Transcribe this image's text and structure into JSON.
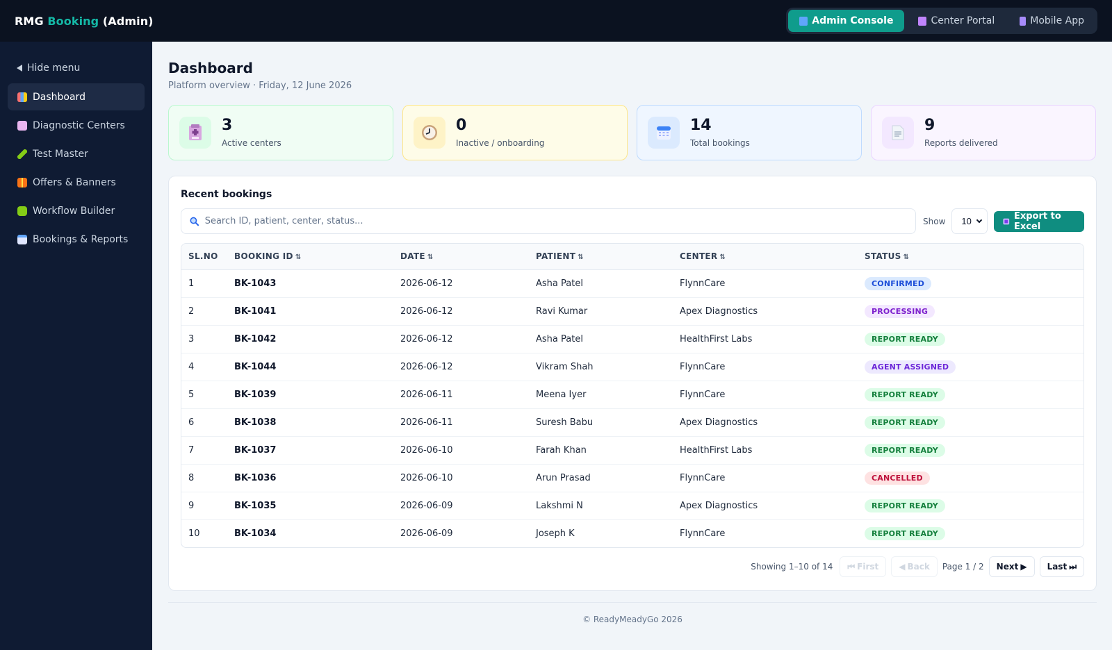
{
  "app": {
    "brand_prefix": "RMG",
    "brand_accent": "Booking",
    "brand_suffix": "(Admin)"
  },
  "switcher": {
    "items": [
      {
        "label": "Admin Console",
        "icon": "monitor-icon",
        "active": true
      },
      {
        "label": "Center Portal",
        "icon": "building-icon",
        "active": false
      },
      {
        "label": "Mobile App",
        "icon": "phone-icon",
        "active": false
      }
    ]
  },
  "sidebar": {
    "hide_label": "Hide menu",
    "items": [
      {
        "label": "Dashboard",
        "icon": "chart-icon",
        "active": true
      },
      {
        "label": "Diagnostic Centers",
        "icon": "hospital-icon",
        "active": false
      },
      {
        "label": "Test Master",
        "icon": "pencil-icon",
        "active": false
      },
      {
        "label": "Offers & Banners",
        "icon": "gift-icon",
        "active": false
      },
      {
        "label": "Workflow Builder",
        "icon": "puzzle-icon",
        "active": false
      },
      {
        "label": "Bookings & Reports",
        "icon": "calendar-icon",
        "active": false
      }
    ]
  },
  "page": {
    "title": "Dashboard",
    "subtitle": "Platform overview · Friday, 12 June 2026"
  },
  "stats": [
    {
      "value": "3",
      "label": "Active centers",
      "icon": "hospital-icon",
      "bg": "#f0fdf4",
      "border": "#bbf7d0",
      "icon_bg": "#dcfce7"
    },
    {
      "value": "0",
      "label": "Inactive / onboarding",
      "icon": "clock-icon",
      "bg": "#fefce8",
      "border": "#fde68a",
      "icon_bg": "#fef3c7"
    },
    {
      "value": "14",
      "label": "Total bookings",
      "icon": "calendar-icon",
      "bg": "#eff6ff",
      "border": "#bfdbfe",
      "icon_bg": "#dbeafe"
    },
    {
      "value": "9",
      "label": "Reports delivered",
      "icon": "document-icon",
      "bg": "#faf5ff",
      "border": "#e9d5ff",
      "icon_bg": "#f3e8ff"
    }
  ],
  "recent": {
    "title": "Recent bookings",
    "search_placeholder": "Search ID, patient, center, status...",
    "show_label": "Show",
    "page_size": "10",
    "export_label": "Export to Excel",
    "columns": [
      "SL.NO",
      "BOOKING ID",
      "DATE",
      "PATIENT",
      "CENTER",
      "STATUS"
    ],
    "sort_glyph": "⇅",
    "rows": [
      {
        "sl": "1",
        "id": "BK-1043",
        "date": "2026-06-12",
        "patient": "Asha Patel",
        "center": "FlynnCare",
        "status": "CONFIRMED"
      },
      {
        "sl": "2",
        "id": "BK-1041",
        "date": "2026-06-12",
        "patient": "Ravi Kumar",
        "center": "Apex Diagnostics",
        "status": "PROCESSING"
      },
      {
        "sl": "3",
        "id": "BK-1042",
        "date": "2026-06-12",
        "patient": "Asha Patel",
        "center": "HealthFirst Labs",
        "status": "REPORT READY"
      },
      {
        "sl": "4",
        "id": "BK-1044",
        "date": "2026-06-12",
        "patient": "Vikram Shah",
        "center": "FlynnCare",
        "status": "AGENT ASSIGNED"
      },
      {
        "sl": "5",
        "id": "BK-1039",
        "date": "2026-06-11",
        "patient": "Meena Iyer",
        "center": "FlynnCare",
        "status": "REPORT READY"
      },
      {
        "sl": "6",
        "id": "BK-1038",
        "date": "2026-06-11",
        "patient": "Suresh Babu",
        "center": "Apex Diagnostics",
        "status": "REPORT READY"
      },
      {
        "sl": "7",
        "id": "BK-1037",
        "date": "2026-06-10",
        "patient": "Farah Khan",
        "center": "HealthFirst Labs",
        "status": "REPORT READY"
      },
      {
        "sl": "8",
        "id": "BK-1036",
        "date": "2026-06-10",
        "patient": "Arun Prasad",
        "center": "FlynnCare",
        "status": "CANCELLED"
      },
      {
        "sl": "9",
        "id": "BK-1035",
        "date": "2026-06-09",
        "patient": "Lakshmi N",
        "center": "Apex Diagnostics",
        "status": "REPORT READY"
      },
      {
        "sl": "10",
        "id": "BK-1034",
        "date": "2026-06-09",
        "patient": "Joseph K",
        "center": "FlynnCare",
        "status": "REPORT READY"
      }
    ],
    "status_colors": {
      "CONFIRMED": {
        "bg": "#dbeafe",
        "fg": "#1d4ed8"
      },
      "PROCESSING": {
        "bg": "#f3e8ff",
        "fg": "#7e22ce"
      },
      "REPORT READY": {
        "bg": "#dcfce7",
        "fg": "#15803d"
      },
      "AGENT ASSIGNED": {
        "bg": "#ede9fe",
        "fg": "#6d28d9"
      },
      "CANCELLED": {
        "bg": "#fee2e2",
        "fg": "#be123c"
      }
    }
  },
  "pagination": {
    "info": "Showing 1–10 of 14",
    "first_label": "First",
    "back_label": "Back",
    "page_label": "Page 1 / 2",
    "next_label": "Next",
    "last_label": "Last"
  },
  "footer": {
    "text": "© ReadyMeadyGo 2026"
  },
  "colors": {
    "topbar": "#0b1220",
    "sidebar": "#0f1b33",
    "accent": "#14b8a6",
    "primary_button": "#0f8d80"
  }
}
